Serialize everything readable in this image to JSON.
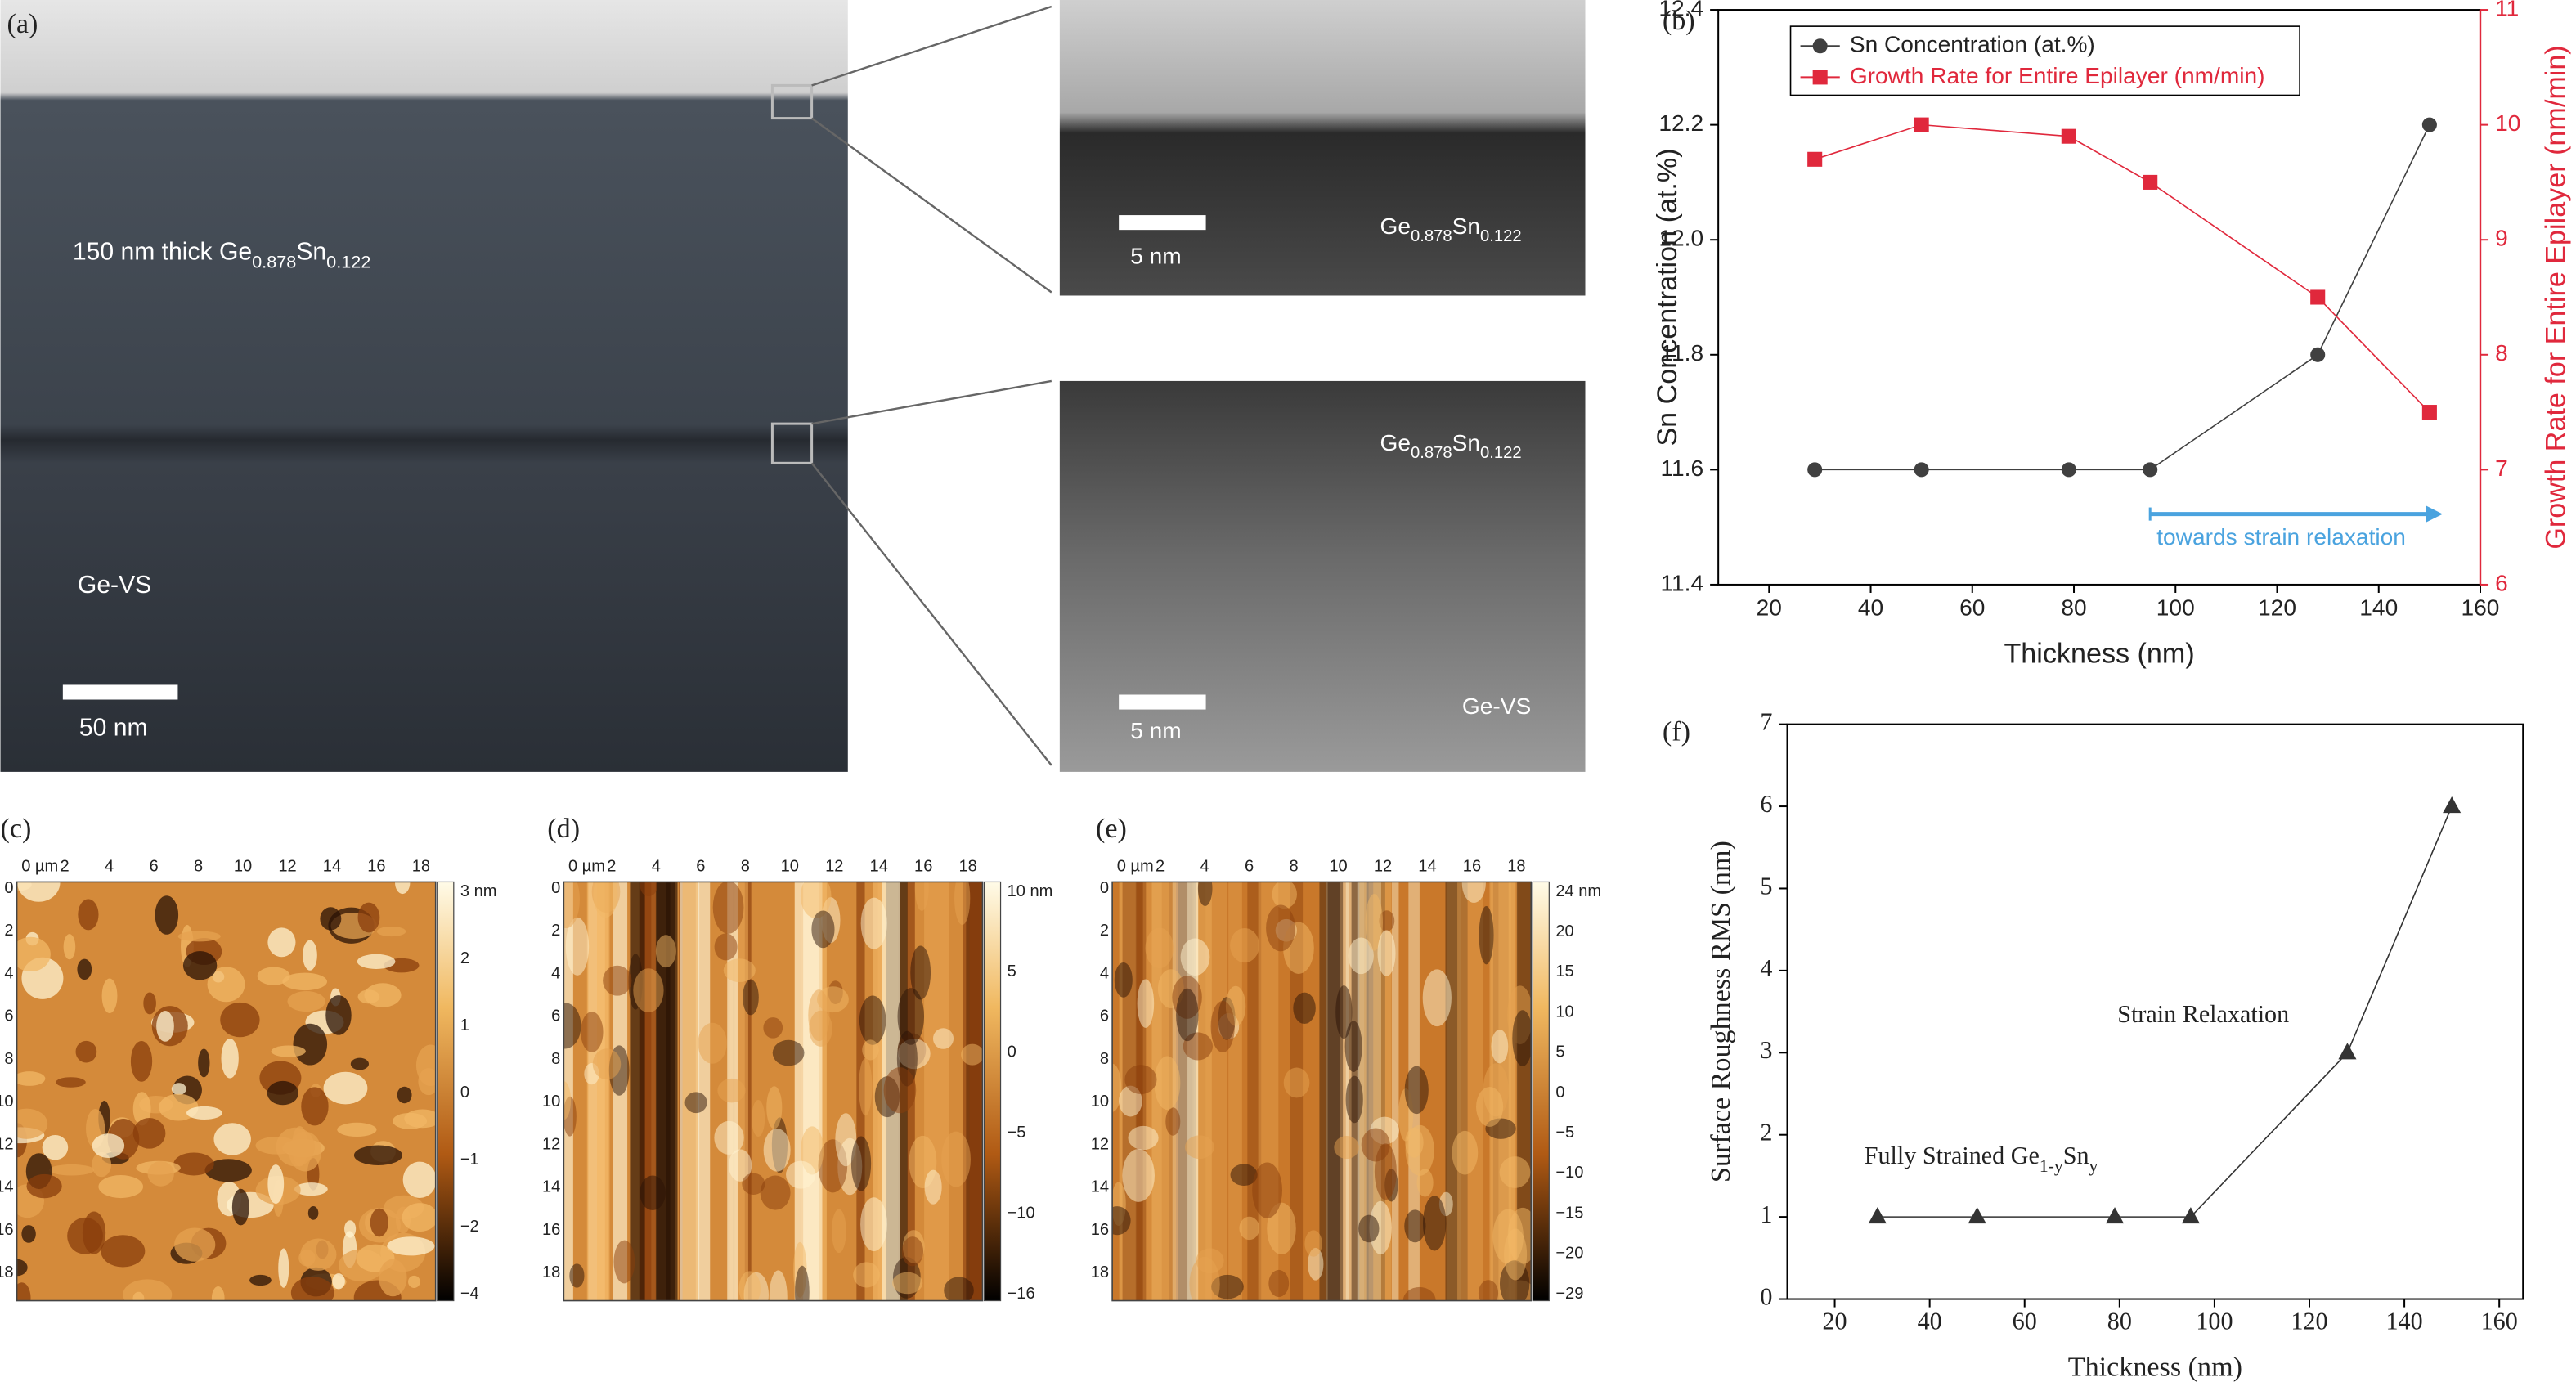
{
  "panel_labels": [
    "(a)",
    "(b)",
    "(c)",
    "(d)",
    "(e)",
    "(f)"
  ],
  "tem": {
    "layer_label": [
      "150 nm thick Ge",
      "0.878",
      "Sn",
      "0.122"
    ],
    "substrate_label": "Ge-VS",
    "scale_main": "50 nm",
    "scale_inset": "5 nm",
    "inset_layer_label": [
      "Ge",
      "0.878",
      "Sn",
      "0.122"
    ],
    "inset_substrate_label": "Ge-VS"
  },
  "afm": {
    "xticks": [
      "0 µm",
      "2",
      "4",
      "6",
      "8",
      "10",
      "12",
      "14",
      "16",
      "18"
    ],
    "yticks": [
      "0",
      "2",
      "4",
      "6",
      "8",
      "10",
      "12",
      "14",
      "16",
      "18"
    ],
    "colorbars": [
      [
        "3 nm",
        "2",
        "1",
        "0",
        "−1",
        "−2",
        "−4"
      ],
      [
        "10 nm",
        "5",
        "0",
        "−5",
        "−10",
        "−16"
      ],
      [
        "24 nm",
        "20",
        "15",
        "10",
        "5",
        "0",
        "−5",
        "−10",
        "−15",
        "−20",
        "−29"
      ]
    ]
  },
  "chart_data": [
    {
      "type": "line",
      "xlabel": "Thickness (nm)",
      "ylabel": "Sn Concentration (at.%)",
      "y2label": "Growth Rate for Entire Epilayer (nm/min)",
      "x": [
        29,
        50,
        79,
        95,
        128,
        150
      ],
      "series": [
        {
          "name": "Sn Concentration (at.%)",
          "color": "#404040",
          "marker": "circle",
          "values": [
            11.6,
            11.6,
            11.6,
            11.6,
            11.8,
            12.2
          ]
        },
        {
          "name": "Growth Rate for Entire Epilayer (nm/min)",
          "color": "#e0283c",
          "marker": "square",
          "axis": "y2",
          "values": [
            9.7,
            10.0,
            9.9,
            9.5,
            8.5,
            7.5
          ]
        }
      ],
      "xlim": [
        10,
        160
      ],
      "xticks": [
        20,
        40,
        60,
        80,
        100,
        120,
        140,
        160
      ],
      "ylim": [
        11.4,
        12.4
      ],
      "yticks": [
        11.4,
        11.6,
        11.8,
        {
          "value": 12,
          "label": "12.0"
        },
        12.2,
        12.4
      ],
      "y2lim": [
        6,
        11
      ],
      "y2ticks": [
        6,
        7,
        8,
        9,
        10,
        11
      ],
      "legend": "upper left",
      "annotations": [
        {
          "text": "towards strain relaxation",
          "color": "#4aa3df"
        }
      ]
    },
    {
      "type": "line",
      "xlabel": "Thickness (nm)",
      "ylabel": "Surface Roughness RMS (nm)",
      "x": [
        29,
        50,
        79,
        95,
        128,
        150
      ],
      "series": [
        {
          "name": null,
          "color": "#333333",
          "marker": "triangle",
          "values": [
            1,
            1,
            1,
            1,
            3,
            6
          ]
        }
      ],
      "xlim": [
        10,
        165
      ],
      "xticks": [
        20,
        40,
        60,
        80,
        100,
        120,
        140,
        160
      ],
      "ylim": [
        0,
        7
      ],
      "yticks": [
        0,
        1,
        2,
        3,
        4,
        5,
        6,
        7
      ],
      "annotations": [
        {
          "parts": [
            "Strain Relaxation"
          ]
        },
        {
          "parts": [
            "Fully Strained Ge",
            "1-y",
            "Sn",
            "y"
          ]
        }
      ]
    }
  ]
}
